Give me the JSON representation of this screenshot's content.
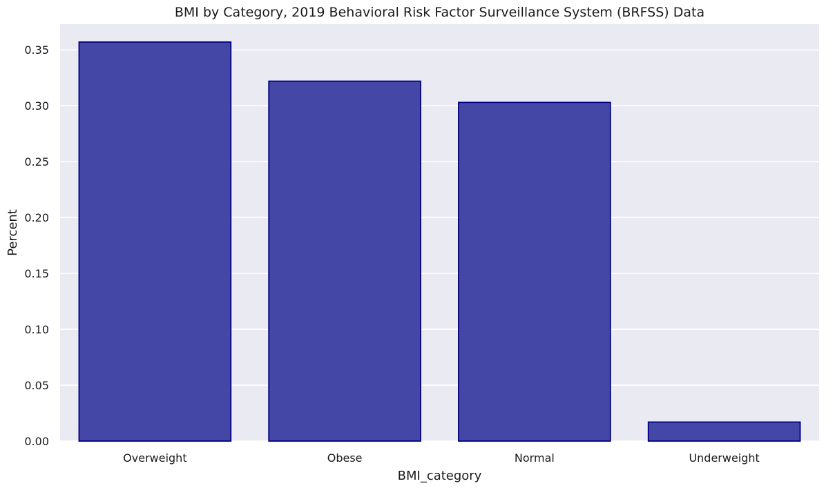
{
  "chart_data": {
    "type": "bar",
    "title": "BMI by Category, 2019 Behavioral Risk Factor Surveillance System (BRFSS) Data",
    "xlabel": "BMI_category",
    "ylabel": "Percent",
    "categories": [
      "Overweight",
      "Obese",
      "Normal",
      "Underweight"
    ],
    "values": [
      0.357,
      0.322,
      0.303,
      0.017
    ],
    "ylim": [
      0,
      0.373
    ],
    "yticks": [
      0.0,
      0.05,
      0.1,
      0.15,
      0.2,
      0.25,
      0.3,
      0.35
    ],
    "ytick_labels": [
      "0.00",
      "0.05",
      "0.10",
      "0.15",
      "0.20",
      "0.25",
      "0.30",
      "0.35"
    ],
    "grid": true,
    "colors": {
      "plot_background": "#eaeaf2",
      "grid": "#ffffff",
      "bar_fill": "#4547a7",
      "bar_edge": "#000080"
    }
  }
}
